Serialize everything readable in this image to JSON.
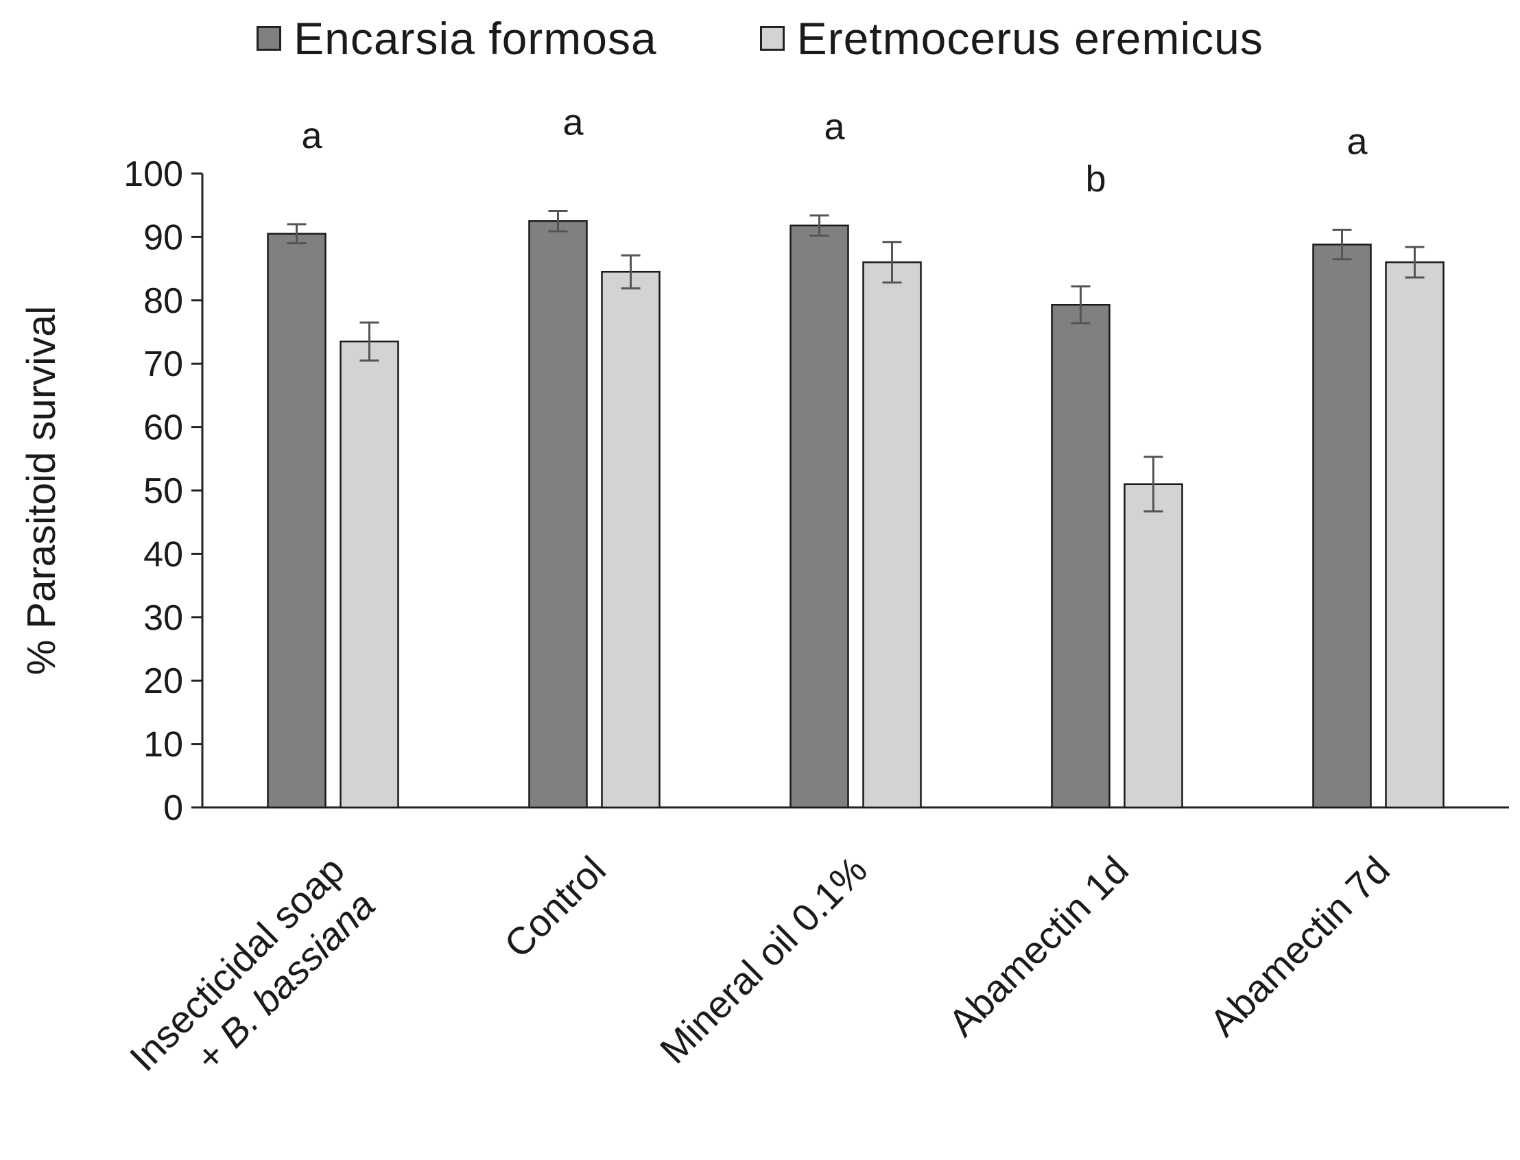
{
  "chart_data": {
    "type": "bar",
    "title": "",
    "xlabel": "",
    "ylabel": "% Parasitoid survival",
    "ylim": [
      0,
      100
    ],
    "yticks": [
      0,
      10,
      20,
      30,
      40,
      50,
      60,
      70,
      80,
      90,
      100
    ],
    "grid": false,
    "legend_position": "top-center",
    "categories": [
      {
        "lines": [
          "Insecticidal soap",
          "+ B. bassiana"
        ],
        "italic_second_line_part": "B. bassiana"
      },
      {
        "lines": [
          "Control"
        ]
      },
      {
        "lines": [
          "Mineral oil 0.1%"
        ]
      },
      {
        "lines": [
          "Abamectin 1d"
        ]
      },
      {
        "lines": [
          "Abamectin 7d"
        ]
      }
    ],
    "series": [
      {
        "name": "Encarsia formosa",
        "color": "#808080",
        "values": [
          90.5,
          92.5,
          91.8,
          79.3,
          88.8
        ],
        "errors": [
          1.5,
          1.6,
          1.6,
          2.9,
          2.3
        ]
      },
      {
        "name": "Eretmocerus eremicus",
        "color": "#d3d3d3",
        "values": [
          73.5,
          84.5,
          86.0,
          51.0,
          86.0
        ],
        "errors": [
          3.0,
          2.6,
          3.2,
          4.3,
          2.4
        ]
      }
    ],
    "significance_letters": [
      "a",
      "a",
      "a",
      "b",
      "a"
    ]
  },
  "colors": {
    "axis": "#222222",
    "bar_edge": "#1a1a1a",
    "error_bar": "#555555"
  }
}
